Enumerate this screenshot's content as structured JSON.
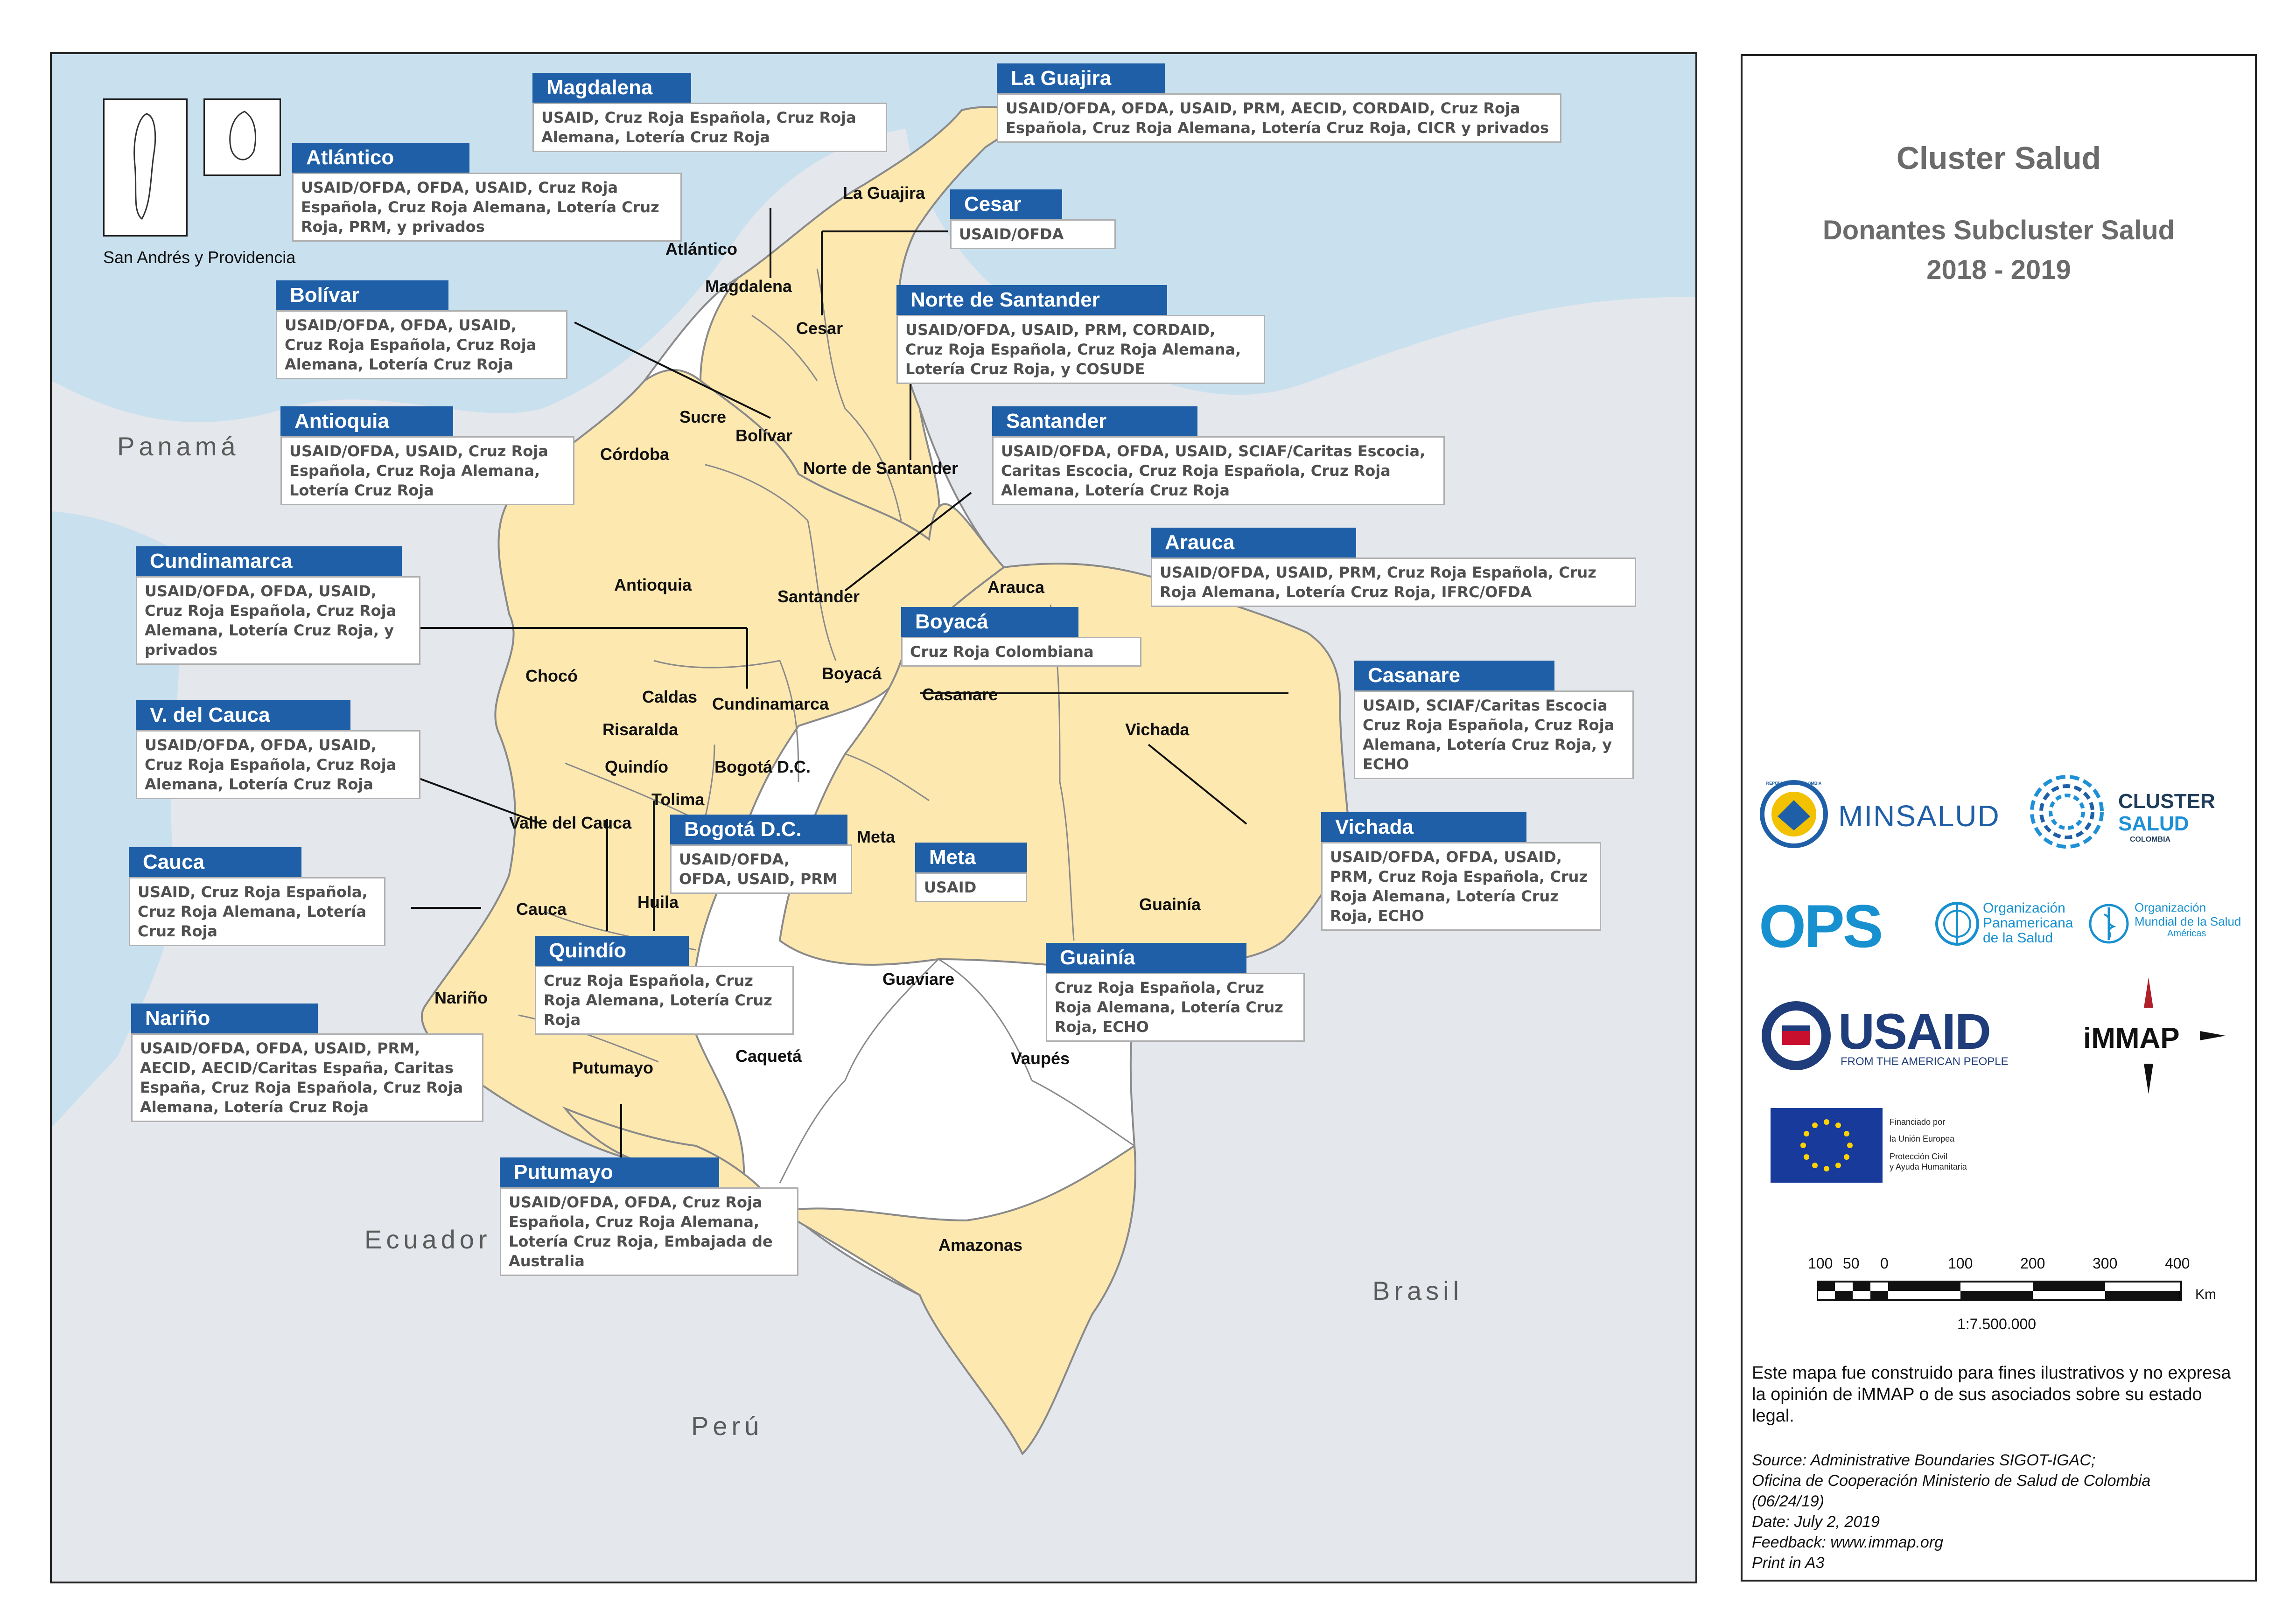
{
  "panel": {
    "title": "Cluster Salud",
    "subtitle": "Donantes Subcluster Salud",
    "years": "2018 - 2019",
    "disclaimer": "Este mapa fue construido para fines ilustrativos y no expresa la opinión de iMMAP o de sus asociados sobre su estado legal.",
    "source_lines": [
      "Source: Administrative Boundaries SIGOT-IGAC;",
      "Oficina de Cooperación Ministerio de Salud de Colombia",
      "(06/24/19)",
      "Date: July 2, 2019",
      "Feedback: www.immap.org",
      "Print in A3"
    ],
    "scale_ticks": [
      "100",
      "50",
      "0",
      "100",
      "200",
      "300",
      "400"
    ],
    "scale_unit": "Km",
    "scale_ratio": "1:7.500.000"
  },
  "logos": {
    "minsalud": "MINSALUD",
    "minsalud_seal": "REPÚBLICA DE COLOMBIA",
    "cluster": "CLUSTER",
    "salud": "SALUD",
    "colombia": "COLOMBIA",
    "ops": "OPS",
    "ops_line1": "Organización",
    "ops_line2": "Panamericana",
    "ops_line3": "de la Salud",
    "oms_line1": "Organización",
    "oms_line2": "Mundial de la Salud",
    "oms_line3": "Américas",
    "usaid": "USAID",
    "usaid_tag": "FROM THE AMERICAN PEOPLE",
    "immap": "iMMAP",
    "eu_line1": "Financiado por",
    "eu_line2": "la Unión Europea",
    "eu_line3": "Protección Civil",
    "eu_line4": "y Ayuda Humanitaria"
  },
  "map": {
    "inset_label": "San  Andrés y Providencia",
    "countries": [
      "Panamá",
      "Ecuador",
      "Perú",
      "Brasil"
    ],
    "dept_labels": [
      "La Guajira",
      "Atlántico",
      "Magdalena",
      "Cesar",
      "Sucre",
      "Bolívar",
      "Córdoba",
      "Norte de Santander",
      "Antioquia",
      "Santander",
      "Arauca",
      "Chocó",
      "Caldas",
      "Risaralda",
      "Cundinamarca",
      "Boyacá",
      "Casanare",
      "Vichada",
      "Quindío",
      "Bogotá D.C.",
      "Tolima",
      "Valle del Cauca",
      "Meta",
      "Cauca",
      "Huila",
      "Guainía",
      "Guaviare",
      "Nariño",
      "Caquetá",
      "Vaupés",
      "Putumayo",
      "Amazonas"
    ]
  },
  "callouts": [
    {
      "name": "Magdalena",
      "donors": "USAID, Cruz Roja Española, Cruz Roja Alemana,  Lotería Cruz Roja"
    },
    {
      "name": "La Guajira",
      "donors": "USAID/OFDA, OFDA, USAID,  PRM, AECID, CORDAID, Cruz Roja Española, Cruz Roja Alemana, Lotería Cruz Roja, CICR y privados"
    },
    {
      "name": "Atlántico",
      "donors": "USAID/OFDA, OFDA, USAID, Cruz Roja Española, Cruz Roja Alemana, Lotería Cruz Roja, PRM, y privados"
    },
    {
      "name": "Cesar",
      "donors": "USAID/OFDA"
    },
    {
      "name": "Bolívar",
      "donors": "USAID/OFDA, OFDA, USAID, Cruz Roja Española, Cruz Roja Alemana, Lotería Cruz Roja"
    },
    {
      "name": "Norte de Santander",
      "donors": "USAID/OFDA, USAID, PRM, CORDAID, Cruz Roja Española, Cruz Roja Alemana, Lotería Cruz Roja, y COSUDE"
    },
    {
      "name": "Antioquia",
      "donors": "USAID/OFDA,  USAID, Cruz Roja Española, Cruz Roja Alemana, Lotería Cruz Roja"
    },
    {
      "name": "Santander",
      "donors": "USAID/OFDA, OFDA, USAID, SCIAF/Caritas Escocia, Caritas Escocia, Cruz Roja Española, Cruz Roja Alemana, Lotería Cruz Roja"
    },
    {
      "name": "Arauca",
      "donors": "USAID/OFDA,  USAID, PRM, Cruz Roja Española, Cruz Roja Alemana, Lotería Cruz Roja, IFRC/OFDA"
    },
    {
      "name": "Cundinamarca",
      "donors": "USAID/OFDA, OFDA, USAID, Cruz Roja Española, Cruz Roja Alemana, Lotería Cruz Roja, y privados"
    },
    {
      "name": "Boyacá",
      "donors": "Cruz Roja Colombiana"
    },
    {
      "name": "Casanare",
      "donors": "USAID, SCIAF/Caritas Escocia Cruz Roja Española, Cruz Roja Alemana, Lotería Cruz Roja, y ECHO"
    },
    {
      "name": "V. del Cauca",
      "donors": "USAID/OFDA, OFDA, USAID, Cruz Roja Española, Cruz Roja Alemana, Lotería Cruz Roja"
    },
    {
      "name": "Bogotá D.C.",
      "donors": "USAID/OFDA, OFDA, USAID, PRM"
    },
    {
      "name": "Meta",
      "donors": "USAID"
    },
    {
      "name": "Vichada",
      "donors": "USAID/OFDA, OFDA, USAID, PRM, Cruz Roja Española, Cruz Roja Alemana, Lotería Cruz Roja, ECHO"
    },
    {
      "name": "Cauca",
      "donors": "USAID, Cruz Roja Española, Cruz Roja Alemana, Lotería Cruz Roja"
    },
    {
      "name": "Quindío",
      "donors": "Cruz Roja Española, Cruz Roja Alemana, Lotería Cruz Roja"
    },
    {
      "name": "Guainía",
      "donors": "Cruz Roja Española, Cruz Roja Alemana, Lotería Cruz Roja, ECHO"
    },
    {
      "name": "Nariño",
      "donors": "USAID/OFDA, OFDA, USAID, PRM, AECID, AECID/Caritas España, Caritas España, Cruz Roja Española, Cruz Roja Alemana, Lotería Cruz Roja"
    },
    {
      "name": "Putumayo",
      "donors": "USAID/OFDA, OFDA,  Cruz Roja Española, Cruz Roja Alemana, Lotería Cruz Roja, Embajada de Australia"
    }
  ],
  "colors": {
    "covered": "#fde8b0",
    "uncovered": "#ffffff",
    "neighbor": "#e4e7eb",
    "sea": "#c9e0ef",
    "border": "#8a8a8a",
    "header": "#1f5fa8",
    "ops_blue": "#1790d0",
    "usaid_blue": "#1f3d7a",
    "usaid_red": "#c8102e",
    "eu_blue": "#173a9b",
    "eu_star": "#ffd200"
  }
}
